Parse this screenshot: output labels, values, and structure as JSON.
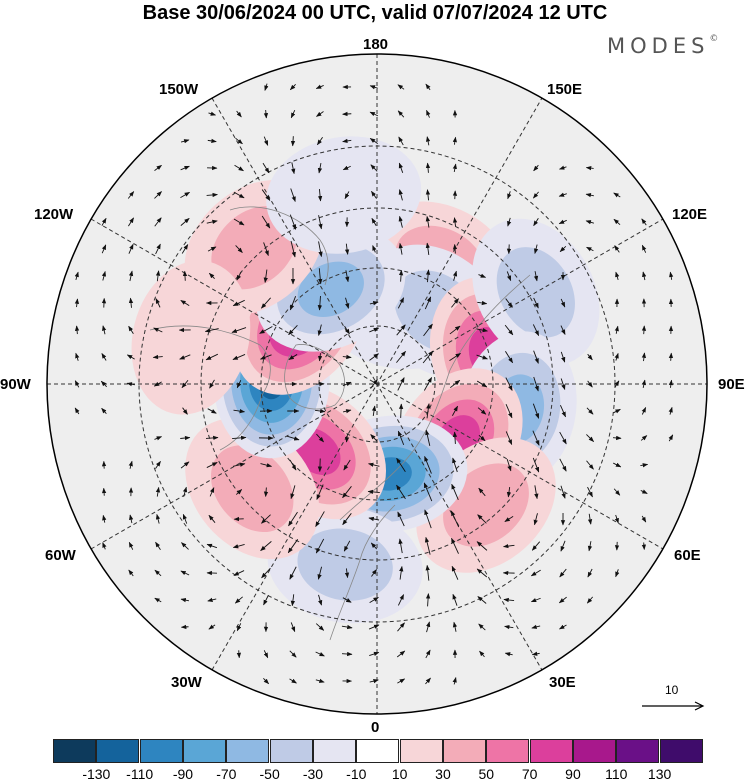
{
  "title": "Base 30/06/2024 00 UTC, valid 07/07/2024 12 UTC",
  "brand": {
    "name": "MODES",
    "mark": "©"
  },
  "longitude_labels": {
    "deg180": "180",
    "deg150e": "150E",
    "deg120e": "120E",
    "deg90e": "90E",
    "deg60e": "60E",
    "deg30e": "30E",
    "deg0": "0",
    "deg30w": "30W",
    "deg60w": "60W",
    "deg90w": "90W",
    "deg120w": "120W",
    "deg150w": "150W"
  },
  "reference_vector": {
    "label": "10"
  },
  "colorbar": {
    "ticks": [
      "-130",
      "-110",
      "-90",
      "-70",
      "-50",
      "-30",
      "-10",
      "10",
      "30",
      "50",
      "70",
      "90",
      "110",
      "130"
    ],
    "colors": [
      "#0d3a5c",
      "#14639c",
      "#2e85c0",
      "#5aa6d6",
      "#8fb9e3",
      "#bfcbe6",
      "#e5e5f2",
      "#ffffff",
      "#f7d6d8",
      "#f3acb8",
      "#ee74a6",
      "#dc3f9c",
      "#a8188c",
      "#6a1087",
      "#3f0c6b"
    ]
  },
  "map": {
    "projection": "north-polar-stereographic",
    "anomalies": [
      {
        "region": "north-pacific-high",
        "lon": 152,
        "lat": 52,
        "value": 50
      },
      {
        "region": "east-siberia-low",
        "lon": 166,
        "lat": 68,
        "value": -30
      },
      {
        "region": "yakutia-low",
        "lon": 140,
        "lat": 63,
        "value": -40
      },
      {
        "region": "west-siberia-high",
        "lon": 105,
        "lat": 57,
        "value": 80
      },
      {
        "region": "far-east-low",
        "lon": 120,
        "lat": 40,
        "value": -40
      },
      {
        "region": "central-asia-low",
        "lon": 80,
        "lat": 50,
        "value": -70
      },
      {
        "region": "ural-high",
        "lon": 55,
        "lat": 62,
        "value": 90
      },
      {
        "region": "caspian-high",
        "lon": 42,
        "lat": 45,
        "value": 50
      },
      {
        "region": "scandinavia-low",
        "lon": 8,
        "lat": 64,
        "value": -100
      },
      {
        "region": "atlantic-low",
        "lon": 350,
        "lat": 40,
        "value": -40
      },
      {
        "region": "greenland-high",
        "lon": 318,
        "lat": 64,
        "value": 80
      },
      {
        "region": "west-atlantic-high",
        "lon": 310,
        "lat": 45,
        "value": 40
      },
      {
        "region": "hudson-low",
        "lon": 268,
        "lat": 60,
        "value": -120
      },
      {
        "region": "canada-high",
        "lon": 232,
        "lat": 62,
        "value": 110
      },
      {
        "region": "alaska-low",
        "lon": 206,
        "lat": 60,
        "value": -70
      },
      {
        "region": "gulf-alaska-high",
        "lon": 222,
        "lat": 40,
        "value": 40
      },
      {
        "region": "pacific-low",
        "lon": 190,
        "lat": 38,
        "value": -30
      },
      {
        "region": "us-west-high",
        "lon": 256,
        "lat": 38,
        "value": 30
      }
    ]
  }
}
